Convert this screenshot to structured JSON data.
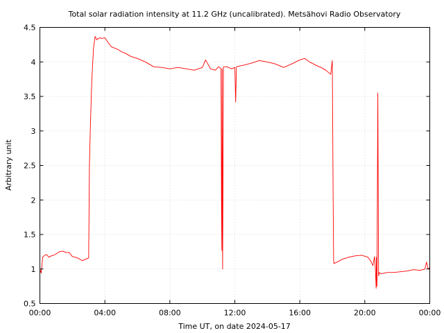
{
  "chart_data": {
    "type": "line",
    "title": "Total solar radiation intensity at 11.2 GHz (uncalibrated). Metsähovi Radio Observatory",
    "xlabel": "Time UT, on date 2024-05-17",
    "ylabel": "Arbitrary unit",
    "xlim": [
      0,
      24
    ],
    "ylim": [
      0.5,
      4.5
    ],
    "grid": true,
    "x_ticks": [
      {
        "value": 0,
        "label": "00:00"
      },
      {
        "value": 4,
        "label": "04:00"
      },
      {
        "value": 8,
        "label": "08:00"
      },
      {
        "value": 12,
        "label": "12:00"
      },
      {
        "value": 16,
        "label": "16:00"
      },
      {
        "value": 20,
        "label": "20:00"
      },
      {
        "value": 24,
        "label": "00:00"
      }
    ],
    "y_ticks": [
      {
        "value": 0.5,
        "label": "0.5"
      },
      {
        "value": 1,
        "label": "1"
      },
      {
        "value": 1.5,
        "label": "1.5"
      },
      {
        "value": 2,
        "label": "2"
      },
      {
        "value": 2.5,
        "label": "2.5"
      },
      {
        "value": 3,
        "label": "3"
      },
      {
        "value": 3.5,
        "label": "3.5"
      },
      {
        "value": 4,
        "label": "4"
      },
      {
        "value": 4.5,
        "label": "4.5"
      }
    ],
    "series": [
      {
        "color": "#ff0000",
        "x": [
          0.0,
          0.08,
          0.17,
          0.3,
          0.42,
          0.55,
          0.7,
          0.85,
          1.0,
          1.2,
          1.4,
          1.6,
          1.8,
          2.0,
          2.2,
          2.4,
          2.6,
          2.8,
          3.0,
          3.05,
          3.1,
          3.15,
          3.2,
          3.3,
          3.4,
          3.5,
          3.6,
          3.7,
          3.8,
          4.0,
          4.2,
          4.4,
          4.6,
          4.8,
          5.0,
          5.3,
          5.6,
          6.0,
          6.5,
          7.0,
          7.5,
          8.0,
          8.5,
          9.0,
          9.5,
          10.0,
          10.2,
          10.5,
          10.8,
          11.0,
          11.15,
          11.18,
          11.2,
          11.22,
          11.25,
          11.3,
          11.5,
          11.8,
          12.0,
          12.05,
          12.1,
          12.5,
          13.0,
          13.5,
          14.0,
          14.5,
          15.0,
          15.5,
          16.0,
          16.3,
          16.6,
          17.0,
          17.3,
          17.6,
          17.9,
          18.0,
          18.05,
          18.08,
          18.1,
          18.3,
          18.6,
          19.0,
          19.4,
          19.8,
          20.2,
          20.4,
          20.5,
          20.6,
          20.65,
          20.7,
          20.72,
          20.75,
          20.8,
          20.85,
          20.9,
          21.0,
          21.4,
          21.8,
          22.2,
          22.6,
          23.0,
          23.4,
          23.7,
          23.8,
          23.9,
          24.0
        ],
        "y": [
          1.0,
          0.94,
          1.17,
          1.2,
          1.21,
          1.17,
          1.19,
          1.2,
          1.22,
          1.25,
          1.26,
          1.24,
          1.24,
          1.18,
          1.17,
          1.15,
          1.12,
          1.14,
          1.16,
          2.5,
          3.0,
          3.4,
          3.75,
          4.2,
          4.37,
          4.32,
          4.34,
          4.35,
          4.34,
          4.35,
          4.28,
          4.22,
          4.2,
          4.18,
          4.15,
          4.12,
          4.08,
          4.05,
          4.0,
          3.93,
          3.92,
          3.9,
          3.92,
          3.9,
          3.88,
          3.92,
          4.03,
          3.9,
          3.88,
          3.93,
          3.9,
          1.9,
          1.27,
          3.9,
          1.0,
          3.93,
          3.93,
          3.9,
          3.92,
          3.42,
          3.93,
          3.95,
          3.98,
          4.02,
          4.0,
          3.97,
          3.92,
          3.97,
          4.03,
          4.05,
          4.0,
          3.95,
          3.92,
          3.88,
          3.82,
          4.02,
          2.0,
          1.12,
          1.08,
          1.1,
          1.14,
          1.17,
          1.19,
          1.2,
          1.17,
          1.1,
          1.05,
          1.18,
          1.0,
          0.72,
          1.17,
          0.75,
          3.55,
          0.9,
          0.95,
          0.93,
          0.95,
          0.95,
          0.96,
          0.97,
          0.99,
          0.98,
          1.0,
          1.1,
          1.0,
          1.02
        ]
      }
    ]
  }
}
